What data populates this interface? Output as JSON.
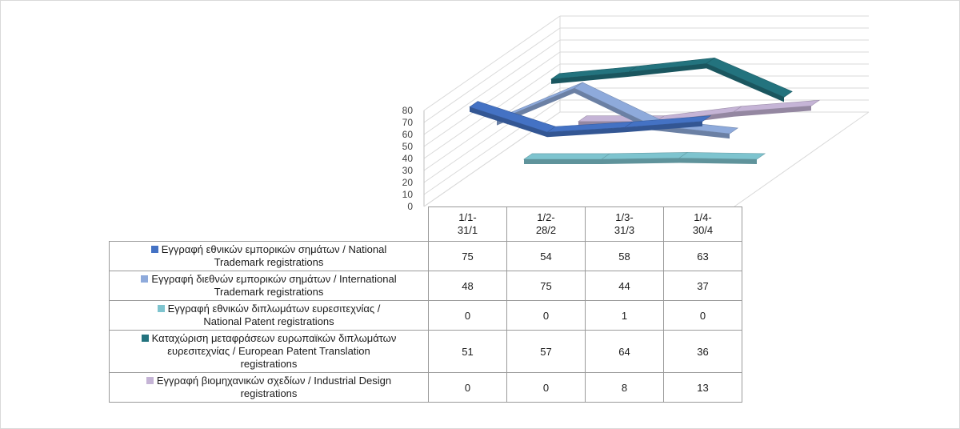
{
  "chart_data": {
    "type": "line",
    "style": "3d",
    "categories": [
      "1/1-31/1",
      "1/2-28/2",
      "1/3-31/3",
      "1/4-30/4"
    ],
    "category_labels": [
      [
        "1/1-",
        "31/1"
      ],
      [
        "1/2-",
        "28/2"
      ],
      [
        "1/3-",
        "31/3"
      ],
      [
        "1/4-",
        "30/4"
      ]
    ],
    "y_ticks": [
      "0",
      "10",
      "20",
      "30",
      "40",
      "50",
      "60",
      "70",
      "80"
    ],
    "ylim": [
      0,
      80
    ],
    "grid": true,
    "legend": "data-table",
    "series": [
      {
        "name": "Εγγραφή εθνικών εμπορικών σημάτων / National Trademark registrations",
        "label_lines": [
          "Εγγραφή εθνικών εμπορικών σημάτων / National",
          "Trademark registrations"
        ],
        "color": "#4472c4",
        "values": [
          75,
          54,
          58,
          63
        ]
      },
      {
        "name": "Εγγραφή διεθνών εμπορικών σημάτων / International Trademark registrations",
        "label_lines": [
          "Εγγραφή διεθνών εμπορικών σημάτων / International",
          "Trademark registrations"
        ],
        "color": "#8eaadb",
        "values": [
          48,
          75,
          44,
          37
        ]
      },
      {
        "name": "Εγγραφή εθνικών διπλωμάτων ευρεσιτεχνίας / National Patent registrations",
        "label_lines": [
          "Εγγραφή εθνικών διπλωμάτων ευρεσιτεχνίας /",
          "National Patent registrations"
        ],
        "color": "#7ec4cf",
        "values": [
          0,
          0,
          1,
          0
        ]
      },
      {
        "name": "Καταχώριση μεταφράσεων ευρωπαϊκών διπλωμάτων ευρεσιτεχνίας / European Patent Translation registrations",
        "label_lines": [
          "Καταχώριση μεταφράσεων ευρωπαϊκών διπλωμάτων",
          "ευρεσιτεχνίας / European Patent Translation",
          "registrations"
        ],
        "color": "#23737e",
        "values": [
          51,
          57,
          64,
          36
        ]
      },
      {
        "name": "Εγγραφή βιομηχανικών σχεδίων / Industrial Design registrations",
        "label_lines": [
          "Εγγραφή βιομηχανικών σχεδίων / Industrial Design",
          "registrations"
        ],
        "color": "#c5b4d6",
        "values": [
          0,
          0,
          8,
          13
        ]
      }
    ]
  }
}
